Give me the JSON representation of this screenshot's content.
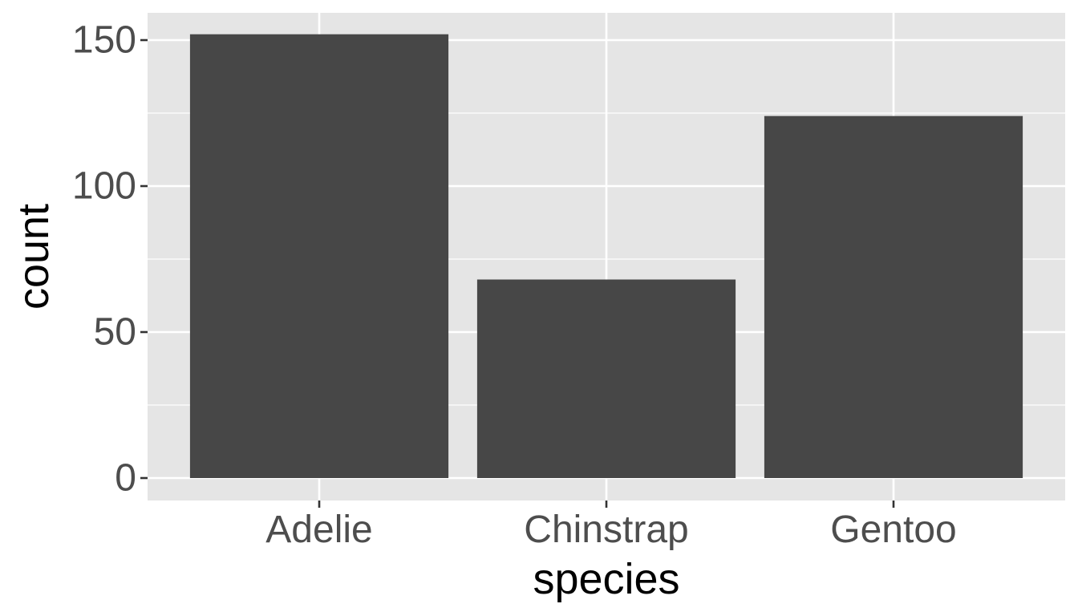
{
  "chart_data": {
    "type": "bar",
    "categories": [
      "Adelie",
      "Chinstrap",
      "Gentoo"
    ],
    "values": [
      152,
      68,
      124
    ],
    "xlabel": "species",
    "ylabel": "count",
    "ylim": [
      0,
      160
    ],
    "y_ticks": [
      0,
      50,
      100,
      150
    ],
    "y_tick_labels": [
      "0",
      "50",
      "100",
      "150"
    ],
    "grid": true,
    "legend": "none",
    "colors": {
      "bar_fill": "#474747",
      "panel_background": "#e5e5e5",
      "gridlines": "#ffffff",
      "tick_label": "#4d4d4d",
      "axis_title": "#000000"
    }
  }
}
